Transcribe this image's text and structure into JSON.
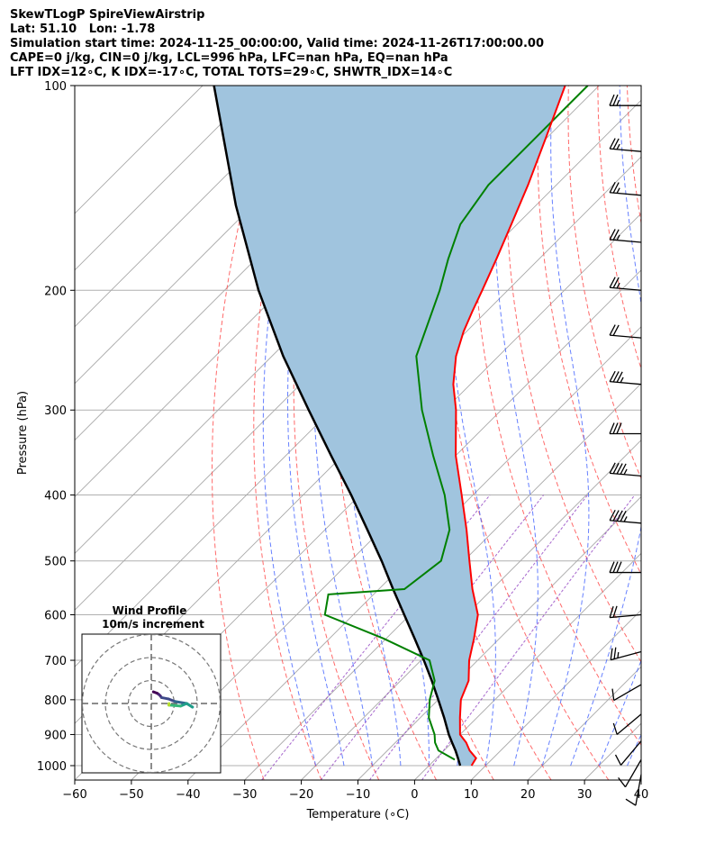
{
  "header": {
    "line1": "SkewTLogP SpireViewAirstrip",
    "line2": "Lat: 51.10   Lon: -1.78",
    "line3": "Simulation start time: 2024-11-25_00:00:00, Valid time: 2024-11-26T17:00:00.00",
    "line4": "CAPE=0 j/kg, CIN=0 j/kg, LCL=996 hPa, LFC=nan hPa, EQ=nan hPa",
    "line5": "LFT IDX=12∘C, K IDX=-17∘C, TOTAL TOTS=29∘C, SHWTR_IDX=14∘C"
  },
  "chart_data": {
    "type": "line",
    "subtype": "skew-t log-p diagram",
    "xlabel": "Temperature (∘C)",
    "ylabel": "Pressure (hPa)",
    "xlim": [
      -60,
      40
    ],
    "ylim": [
      1050,
      100
    ],
    "y_scale": "log",
    "x_ticks": [
      "−60",
      "−50",
      "−40",
      "−30",
      "−20",
      "−10",
      "0",
      "10",
      "20",
      "30",
      "40"
    ],
    "x_tick_values": [
      -60,
      -50,
      -40,
      -30,
      -20,
      -10,
      0,
      10,
      20,
      30,
      40
    ],
    "y_ticks": [
      "100",
      "200",
      "300",
      "400",
      "500",
      "600",
      "700",
      "800",
      "900",
      "1000"
    ],
    "y_tick_values": [
      100,
      200,
      300,
      400,
      500,
      600,
      700,
      800,
      900,
      1000
    ],
    "grid": true,
    "series": [
      {
        "role": "temperature",
        "color": "#ff0000",
        "points": [
          [
            1000,
            7.5
          ],
          [
            975,
            7.0
          ],
          [
            950,
            4.5
          ],
          [
            925,
            2.5
          ],
          [
            900,
            0.0
          ],
          [
            850,
            -3.0
          ],
          [
            800,
            -6.0
          ],
          [
            750,
            -8.0
          ],
          [
            700,
            -11.5
          ],
          [
            650,
            -14.5
          ],
          [
            600,
            -18.0
          ],
          [
            550,
            -23.5
          ],
          [
            500,
            -29.0
          ],
          [
            450,
            -35.0
          ],
          [
            400,
            -42.0
          ],
          [
            350,
            -50.0
          ],
          [
            300,
            -58.0
          ],
          [
            275,
            -63.0
          ],
          [
            250,
            -67.5
          ],
          [
            230,
            -70.5
          ],
          [
            215,
            -72.5
          ],
          [
            200,
            -74.5
          ],
          [
            180,
            -77.5
          ],
          [
            160,
            -81.0
          ],
          [
            140,
            -85.0
          ],
          [
            120,
            -90.0
          ],
          [
            100,
            -96.0
          ]
        ]
      },
      {
        "role": "dewpoint",
        "color": "#008000",
        "points": [
          [
            980,
            3.5
          ],
          [
            950,
            -1.0
          ],
          [
            925,
            -3.0
          ],
          [
            900,
            -4.5
          ],
          [
            850,
            -8.5
          ],
          [
            800,
            -11.5
          ],
          [
            750,
            -14.0
          ],
          [
            700,
            -18.5
          ],
          [
            650,
            -30.5
          ],
          [
            600,
            -45.0
          ],
          [
            560,
            -48.0
          ],
          [
            550,
            -35.5
          ],
          [
            500,
            -34.0
          ],
          [
            450,
            -38.0
          ],
          [
            400,
            -45.0
          ],
          [
            350,
            -54.0
          ],
          [
            300,
            -64.0
          ],
          [
            250,
            -74.5
          ],
          [
            200,
            -82.0
          ],
          [
            180,
            -86.0
          ],
          [
            160,
            -90.0
          ],
          [
            140,
            -92.0
          ],
          [
            120,
            -92.0
          ],
          [
            100,
            -92.0
          ]
        ]
      },
      {
        "role": "parcel",
        "color": "#000000",
        "points": [
          [
            1000,
            5.5
          ],
          [
            975,
            3.8
          ],
          [
            950,
            2.0
          ],
          [
            925,
            0.0
          ],
          [
            900,
            -2.0
          ],
          [
            850,
            -5.8
          ],
          [
            800,
            -10.0
          ],
          [
            750,
            -14.5
          ],
          [
            700,
            -19.5
          ],
          [
            650,
            -25.0
          ],
          [
            600,
            -31.0
          ],
          [
            550,
            -37.5
          ],
          [
            500,
            -44.5
          ],
          [
            450,
            -52.5
          ],
          [
            400,
            -61.5
          ],
          [
            350,
            -72.0
          ],
          [
            300,
            -84.0
          ],
          [
            250,
            -98.0
          ],
          [
            200,
            -114.0
          ],
          [
            150,
            -133.0
          ],
          [
            100,
            -158.0
          ]
        ]
      }
    ],
    "cin_shading": "#a0c4de",
    "wind_barbs": {
      "pressures": [
        107,
        125,
        145,
        170,
        200,
        235,
        275,
        325,
        375,
        440,
        520,
        600,
        680,
        760,
        840,
        920,
        980,
        1030
      ],
      "speed_kt": [
        15,
        15,
        15,
        15,
        15,
        20,
        25,
        30,
        35,
        35,
        30,
        20,
        15,
        10,
        10,
        10,
        10,
        10
      ],
      "dir_deg": [
        270,
        275,
        275,
        275,
        275,
        275,
        275,
        270,
        275,
        275,
        270,
        265,
        255,
        240,
        230,
        220,
        210,
        190
      ]
    },
    "inset": {
      "title": "Wind Profile",
      "subtitle": "10m/s increment",
      "rings": 3
    }
  }
}
